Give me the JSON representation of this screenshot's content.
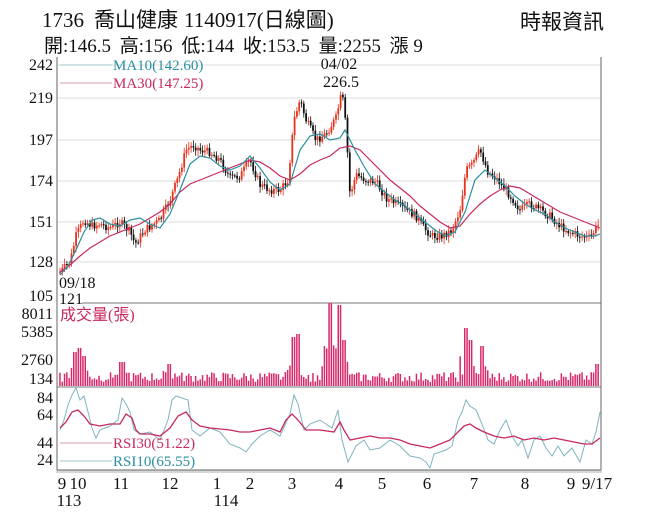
{
  "header": {
    "code": "1736",
    "name": "喬山健康",
    "date_type": "1140917(日線圖)",
    "brand": "時報資訊",
    "ohlc": {
      "open": "開:146.5",
      "high": "高:156",
      "low": "低:144",
      "close": "收:153.5",
      "volume": "量:2255",
      "change": "漲 9"
    }
  },
  "price_panel": {
    "y_ticks": [
      "242",
      "219",
      "197",
      "174",
      "151",
      "128",
      "105"
    ],
    "legend": {
      "ma10": "MA10(142.60)",
      "ma30": "MA30(147.25)"
    },
    "annotations": {
      "high_date": "04/02",
      "high_value": "226.5",
      "low_date": "09/18",
      "low_value": "121"
    }
  },
  "volume_panel": {
    "title": "成交量(張)",
    "y_ticks": [
      "8011",
      "5385",
      "2760",
      "134"
    ]
  },
  "rsi_panel": {
    "y_ticks": [
      "84",
      "64",
      "44",
      "24"
    ],
    "legend": {
      "rsi30": "RSI30(51.22)",
      "rsi10": "RSI10(65.55)"
    }
  },
  "x_axis": {
    "month_labels": [
      "9",
      "10",
      "11",
      "12",
      "1",
      "2",
      "3",
      "4",
      "5",
      "6",
      "7",
      "8",
      "9",
      "9/17"
    ],
    "year_labels": [
      "113",
      "114"
    ]
  },
  "colors": {
    "up": "#e8321e",
    "down": "#111111",
    "ma10": "#2a8fa0",
    "ma30": "#c8285e",
    "volume": "#d6286a",
    "rsi10": "#7fb4bf",
    "rsi30": "#c8285e",
    "grid": "#d9d9d9"
  },
  "chart_data": {
    "type": "candlestick",
    "title": "1736 喬山健康 1140917(日線圖)",
    "subtitle": "開:146.5 高:156 低:144 收:153.5 量:2255 漲 9",
    "panels": [
      {
        "name": "price",
        "ylim": [
          105,
          242
        ],
        "y_ticks": [
          242,
          219,
          197,
          174,
          151,
          128,
          105
        ],
        "series": [
          {
            "name": "MA10",
            "last": 142.6
          },
          {
            "name": "MA30",
            "last": 147.25
          }
        ],
        "approx_close_by_month": {
          "x": [
            "2024-09",
            "2024-10",
            "2024-11",
            "2024-12",
            "2025-01",
            "2025-02",
            "2025-03",
            "2025-04",
            "2025-05",
            "2025-06",
            "2025-07",
            "2025-08",
            "2025-09"
          ],
          "values": [
            125,
            155,
            150,
            190,
            178,
            168,
            205,
            180,
            165,
            145,
            180,
            155,
            142
          ]
        },
        "annotations": [
          {
            "label": "04/02 226.5",
            "type": "high"
          },
          {
            "label": "09/18 121",
            "type": "low"
          }
        ],
        "last_bar": {
          "open": 146.5,
          "high": 156,
          "low": 144,
          "close": 153.5
        }
      },
      {
        "name": "volume",
        "ylabel": "成交量(張)",
        "y_ticks": [
          8011,
          5385,
          2760,
          134
        ],
        "last": 2255,
        "peaks_approx": [
          {
            "x": "2024-10",
            "value": 2700
          },
          {
            "x": "2025-03",
            "value": 4200
          },
          {
            "x": "2025-04",
            "value": 8011
          },
          {
            "x": "2025-07",
            "value": 4700
          }
        ]
      },
      {
        "name": "RSI",
        "y_ticks": [
          84,
          64,
          44,
          24
        ],
        "series": [
          {
            "name": "RSI30",
            "last": 51.22
          },
          {
            "name": "RSI10",
            "last": 65.55
          }
        ]
      }
    ],
    "x_ticks": [
      "9",
      "10",
      "11",
      "12",
      "1",
      "2",
      "3",
      "4",
      "5",
      "6",
      "7",
      "8",
      "9",
      "9/17"
    ],
    "x_year_labels": [
      "113",
      "114"
    ],
    "grid": true
  }
}
